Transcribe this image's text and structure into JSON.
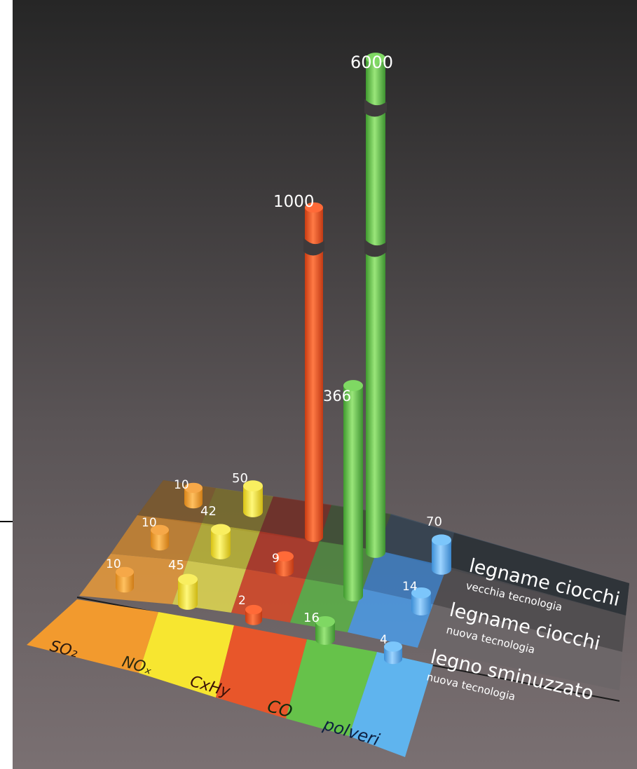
{
  "chart_data": {
    "type": "bar",
    "title": "",
    "categories": [
      "SO₂",
      "NOₓ",
      "CxHy",
      "CO",
      "polveri"
    ],
    "category_colors": [
      "#f29a2e",
      "#f7e630",
      "#e8562a",
      "#66c24a",
      "#5fb4ee"
    ],
    "series": [
      {
        "name": "legname ciocchi",
        "subtitle": "vecchia tecnologia",
        "values": [
          10,
          50,
          1000,
          6000,
          70
        ]
      },
      {
        "name": "legname ciocchi",
        "subtitle": "nuova tecnologia",
        "values": [
          10,
          42,
          9,
          366,
          14
        ]
      },
      {
        "name": "legno sminuzzato",
        "subtitle": "nuova tecnologia",
        "values": [
          10,
          45,
          2,
          16,
          4
        ]
      }
    ],
    "value_labels": {
      "cxhy_old": "1000",
      "co_old": "6000",
      "co_new": "366",
      "polveri_old": "70",
      "no_old": "50",
      "no_new": "42",
      "no_chip": "45",
      "so_old": "10",
      "so_new": "10",
      "so_chip": "10",
      "cxhy_new": "9",
      "cxhy_chip": "2",
      "co_chip": "16",
      "polveri_new": "14",
      "polveri_chip": "4"
    },
    "rows": {
      "back_title": "legname ciocchi",
      "back_sub": "vecchia tecnologia",
      "mid_title": "legname ciocchi",
      "mid_sub": "nuova tecnologia",
      "front_title": "legno sminuzzato",
      "front_sub": "nuova tecnologia"
    },
    "broken_axis_bars": [
      "CxHy vecchia tecnologia",
      "CO vecchia tecnologia"
    ],
    "colors": {
      "background_top": "#262626",
      "background_bottom": "#7a7072"
    }
  }
}
